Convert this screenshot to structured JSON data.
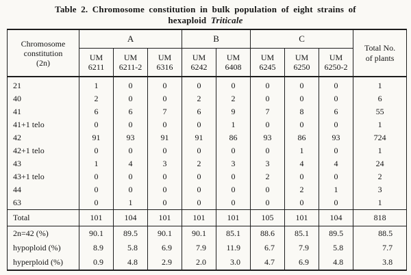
{
  "colors": {
    "paper": "#faf9f5",
    "ink": "#1c1c1c"
  },
  "title": {
    "line1": "Table 2. Chromosome constitution in bulk population of eight strains of",
    "line2_normal": "hexaploid",
    "line2_italic": "Triticale"
  },
  "table": {
    "corner_header": "Chromosome\nconstitution\n(2n)",
    "groups": [
      {
        "label": "A",
        "span": 3
      },
      {
        "label": "B",
        "span": 2
      },
      {
        "label": "C",
        "span": 3
      }
    ],
    "columns": [
      "UM\n6211",
      "UM\n6211-2",
      "UM\n6316",
      "UM\n6242",
      "UM\n6408",
      "UM\n6245",
      "UM\n6250",
      "UM\n6250-2"
    ],
    "total_header": "Total No.\nof plants",
    "rows": [
      {
        "label": "21",
        "values": [
          "1",
          "0",
          "0",
          "0",
          "0",
          "0",
          "0",
          "0"
        ],
        "total": "1"
      },
      {
        "label": "40",
        "values": [
          "2",
          "0",
          "0",
          "2",
          "2",
          "0",
          "0",
          "0"
        ],
        "total": "6"
      },
      {
        "label": "41",
        "values": [
          "6",
          "6",
          "7",
          "6",
          "9",
          "7",
          "8",
          "6"
        ],
        "total": "55"
      },
      {
        "label": "41+1 telo",
        "values": [
          "0",
          "0",
          "0",
          "0",
          "1",
          "0",
          "0",
          "0"
        ],
        "total": "1"
      },
      {
        "label": "42",
        "values": [
          "91",
          "93",
          "91",
          "91",
          "86",
          "93",
          "86",
          "93"
        ],
        "total": "724"
      },
      {
        "label": "42+1 telo",
        "values": [
          "0",
          "0",
          "0",
          "0",
          "0",
          "0",
          "1",
          "0"
        ],
        "total": "1"
      },
      {
        "label": "43",
        "values": [
          "1",
          "4",
          "3",
          "2",
          "3",
          "3",
          "4",
          "4"
        ],
        "total": "24"
      },
      {
        "label": "43+1 telo",
        "values": [
          "0",
          "0",
          "0",
          "0",
          "0",
          "2",
          "0",
          "0"
        ],
        "total": "2"
      },
      {
        "label": "44",
        "values": [
          "0",
          "0",
          "0",
          "0",
          "0",
          "0",
          "2",
          "1"
        ],
        "total": "3"
      },
      {
        "label": "63",
        "values": [
          "0",
          "1",
          "0",
          "0",
          "0",
          "0",
          "0",
          "0"
        ],
        "total": "1"
      }
    ],
    "total_row": {
      "label": "Total",
      "values": [
        "101",
        "104",
        "101",
        "101",
        "101",
        "105",
        "101",
        "104"
      ],
      "total": "818"
    },
    "percent_rows": [
      {
        "label": "2n=42 (%)",
        "values": [
          "90.1",
          "89.5",
          "90.1",
          "90.1",
          "85.1",
          "88.6",
          "85.1",
          "89.5"
        ],
        "total": "88.5"
      },
      {
        "label": "hypoploid (%)",
        "values": [
          "8.9",
          "5.8",
          "6.9",
          "7.9",
          "11.9",
          "6.7",
          "7.9",
          "5.8"
        ],
        "total": "7.7"
      },
      {
        "label": "hyperploid (%)",
        "values": [
          "0.9",
          "4.8",
          "2.9",
          "2.0",
          "3.0",
          "4.7",
          "6.9",
          "4.8"
        ],
        "total": "3.8"
      }
    ]
  }
}
